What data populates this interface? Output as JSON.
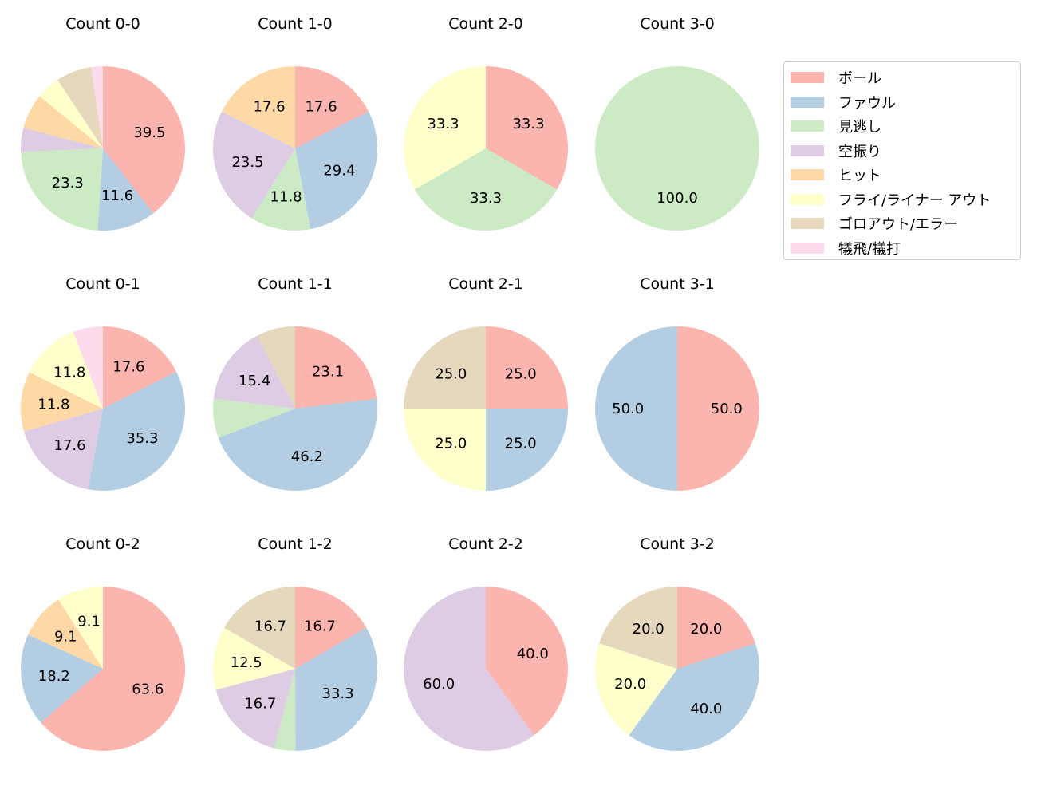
{
  "chart_data": {
    "type": "pie",
    "start_angle": 90,
    "direction": "clockwise",
    "legend": {
      "placement": "right",
      "entries": [
        "ボール",
        "ファウル",
        "見逃し",
        "空振り",
        "ヒット",
        "フライ/ライナー アウト",
        "ゴロアウト/エラー",
        "犠飛/犠打"
      ]
    },
    "colors": [
      "#fbb4ae",
      "#b3cde3",
      "#ccebc5",
      "#decbe4",
      "#fed9a6",
      "#ffffcc",
      "#e5d8bd",
      "#fddaec"
    ],
    "charts": [
      {
        "title": "Count 0-0",
        "values": [
          39.5,
          11.6,
          23.3,
          4.7,
          7.0,
          4.7,
          7.0,
          2.3
        ]
      },
      {
        "title": "Count 1-0",
        "values": [
          17.6,
          29.4,
          11.8,
          23.5,
          17.6,
          0,
          0,
          0
        ]
      },
      {
        "title": "Count 2-0",
        "values": [
          33.3,
          0,
          33.3,
          0,
          0,
          33.3,
          0,
          0
        ]
      },
      {
        "title": "Count 3-0",
        "values": [
          0,
          0,
          100.0,
          0,
          0,
          0,
          0,
          0
        ]
      },
      {
        "title": "Count 0-1",
        "values": [
          17.6,
          35.3,
          0,
          17.6,
          11.8,
          11.8,
          0,
          5.9
        ]
      },
      {
        "title": "Count 1-1",
        "values": [
          23.1,
          46.2,
          7.7,
          15.4,
          0,
          0,
          7.7,
          0
        ]
      },
      {
        "title": "Count 2-1",
        "values": [
          25.0,
          25.0,
          0,
          0,
          0,
          25.0,
          25.0,
          0
        ]
      },
      {
        "title": "Count 3-1",
        "values": [
          50.0,
          50.0,
          0,
          0,
          0,
          0,
          0,
          0
        ]
      },
      {
        "title": "Count 0-2",
        "values": [
          63.6,
          18.2,
          0,
          0,
          9.1,
          9.1,
          0,
          0
        ]
      },
      {
        "title": "Count 1-2",
        "values": [
          16.7,
          33.3,
          4.2,
          16.7,
          0,
          12.5,
          16.7,
          0
        ]
      },
      {
        "title": "Count 2-2",
        "values": [
          40.0,
          0,
          0,
          60.0,
          0,
          0,
          0,
          0
        ]
      },
      {
        "title": "Count 3-2",
        "values": [
          20.0,
          40.0,
          0,
          0,
          0,
          20.0,
          20.0,
          0
        ]
      }
    ]
  }
}
